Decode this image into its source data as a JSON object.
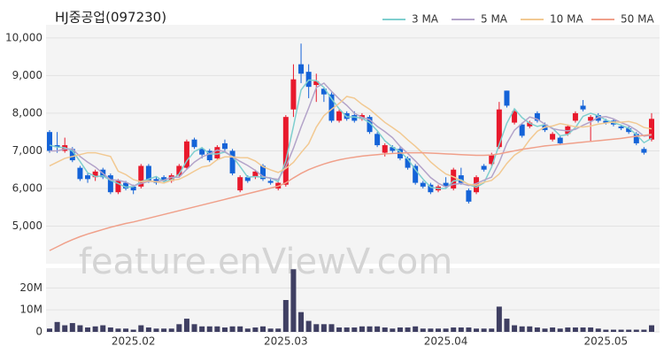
{
  "chart_data": {
    "type": "candlestick",
    "title": "HJ중공업(097230)",
    "watermark": "feature.enViewV.com",
    "categories": [
      null,
      null,
      null,
      null,
      null,
      null,
      null,
      null,
      null,
      null,
      null,
      "2025.02",
      null,
      null,
      null,
      null,
      null,
      null,
      null,
      null,
      null,
      null,
      null,
      null,
      null,
      null,
      null,
      null,
      null,
      null,
      null,
      "2025.03",
      null,
      null,
      null,
      null,
      null,
      null,
      null,
      null,
      null,
      null,
      null,
      null,
      null,
      null,
      null,
      null,
      null,
      null,
      null,
      null,
      "2025.04",
      null,
      null,
      null,
      null,
      null,
      null,
      null,
      null,
      null,
      null,
      null,
      null,
      null,
      null,
      null,
      null,
      null,
      null,
      null,
      null,
      "2025.05",
      null,
      null,
      null,
      null,
      null,
      null
    ],
    "open": [
      7500,
      7150,
      7000,
      7050,
      6550,
      6350,
      6300,
      6500,
      6350,
      5900,
      6150,
      6050,
      6050,
      6600,
      6250,
      6300,
      6200,
      6350,
      6550,
      7300,
      7050,
      7000,
      6800,
      7200,
      7000,
      5950,
      6300,
      6300,
      6600,
      6200,
      6000,
      6100,
      8100,
      9300,
      9100,
      8750,
      8650,
      8500,
      7800,
      8000,
      7950,
      7850,
      7900,
      7450,
      6950,
      7100,
      7050,
      6800,
      6600,
      6150,
      6100,
      5950,
      6150,
      6000,
      6350,
      5950,
      5900,
      6600,
      6650,
      7100,
      8600,
      7750,
      7700,
      7650,
      8000,
      7700,
      7300,
      7350,
      7450,
      7800,
      8200,
      7800,
      7950,
      7800,
      7800,
      7650,
      7600,
      7450,
      7050,
      7300
    ],
    "high": [
      7550,
      7500,
      7350,
      7100,
      6600,
      6400,
      6500,
      6550,
      6400,
      6250,
      6200,
      6100,
      6650,
      6650,
      6300,
      6350,
      6400,
      6650,
      7300,
      7350,
      7100,
      7050,
      7150,
      7300,
      7050,
      6350,
      6350,
      6500,
      6650,
      6250,
      6200,
      7950,
      9300,
      9850,
      9300,
      9050,
      8700,
      8550,
      8100,
      8050,
      8050,
      8000,
      7950,
      7500,
      7200,
      7150,
      7100,
      6850,
      6650,
      6200,
      6150,
      6100,
      6300,
      6550,
      6550,
      6000,
      6350,
      6650,
      6950,
      8300,
      8600,
      8100,
      7750,
      7800,
      8050,
      7750,
      7500,
      7400,
      7700,
      8050,
      8350,
      7950,
      8000,
      7850,
      7850,
      7700,
      7650,
      7500,
      7100,
      8000
    ],
    "low": [
      6950,
      6950,
      6950,
      6700,
      6200,
      6150,
      6200,
      6250,
      5850,
      5850,
      5950,
      5850,
      6000,
      6150,
      6100,
      6150,
      6150,
      6300,
      6500,
      7050,
      6800,
      6700,
      6750,
      7000,
      6350,
      5900,
      6150,
      6250,
      6200,
      6100,
      5950,
      6050,
      7900,
      8800,
      8400,
      8300,
      8300,
      7750,
      7750,
      7800,
      7750,
      7800,
      7450,
      7100,
      6850,
      6950,
      6750,
      6500,
      6100,
      6000,
      5850,
      5900,
      6000,
      5950,
      6100,
      5600,
      5850,
      6450,
      6600,
      7050,
      8150,
      7700,
      7350,
      7600,
      7750,
      7500,
      7250,
      7150,
      7400,
      7750,
      8050,
      7250,
      7750,
      7700,
      7650,
      7550,
      7450,
      7150,
      6900,
      7250
    ],
    "close": [
      7000,
      7100,
      7150,
      6750,
      6250,
      6250,
      6450,
      6300,
      5900,
      6200,
      6000,
      5950,
      6600,
      6200,
      6150,
      6200,
      6350,
      6600,
      7250,
      7100,
      6900,
      6750,
      7100,
      7050,
      6400,
      6300,
      6200,
      6450,
      6250,
      6150,
      6150,
      7900,
      8900,
      9050,
      8700,
      8850,
      8500,
      7800,
      8050,
      7850,
      7800,
      7950,
      7500,
      7150,
      7150,
      7000,
      6800,
      6550,
      6150,
      6050,
      5900,
      6050,
      6050,
      6500,
      6150,
      5650,
      6300,
      6500,
      6900,
      8100,
      8200,
      8050,
      7400,
      7750,
      7800,
      7550,
      7450,
      7200,
      7650,
      8000,
      8100,
      7900,
      7800,
      7750,
      7700,
      7600,
      7500,
      7200,
      6950,
      7850
    ],
    "up_color": "#e8192c",
    "down_color": "#1463d8",
    "ylim": [
      4000,
      10350
    ],
    "yticks": [
      {
        "value": 5000,
        "label": "5,000"
      },
      {
        "value": 6000,
        "label": "6,000"
      },
      {
        "value": 7000,
        "label": "7,000"
      },
      {
        "value": 8000,
        "label": "8,000"
      },
      {
        "value": 9000,
        "label": "9,000"
      },
      {
        "value": 10000,
        "label": "10,000"
      }
    ],
    "grid": true,
    "legend": "top-right",
    "series": [
      {
        "name": "3 MA",
        "color": "#7fcfcf",
        "values": [
          7150,
          7100,
          7083,
          7000,
          6717,
          6417,
          6317,
          6333,
          6217,
          6133,
          6033,
          6050,
          6183,
          6250,
          6317,
          6183,
          6233,
          6383,
          6733,
          6983,
          7083,
          6917,
          6917,
          6967,
          6850,
          6583,
          6300,
          6317,
          6300,
          6283,
          6183,
          6733,
          7650,
          8617,
          8883,
          8867,
          8683,
          8383,
          8117,
          7900,
          7900,
          7867,
          7750,
          7533,
          7267,
          7100,
          6983,
          6783,
          6500,
          6250,
          6033,
          6000,
          6000,
          6200,
          6233,
          6100,
          6033,
          6150,
          6567,
          7167,
          7733,
          8117,
          7883,
          7733,
          7650,
          7700,
          7600,
          7400,
          7433,
          7617,
          7917,
          8000,
          7933,
          7817,
          7750,
          7683,
          7600,
          7433,
          7217,
          7333
        ]
      },
      {
        "name": "5 MA",
        "color": "#b3a3c9",
        "values": [
          7000,
          7000,
          7050,
          7050,
          6850,
          6700,
          6570,
          6400,
          6230,
          6220,
          6170,
          6070,
          6130,
          6190,
          6180,
          6220,
          6300,
          6300,
          6510,
          6700,
          6840,
          6920,
          7020,
          6980,
          6840,
          6720,
          6610,
          6480,
          6320,
          6270,
          6240,
          6580,
          7070,
          7630,
          8140,
          8680,
          8800,
          8580,
          8380,
          8210,
          8000,
          7890,
          7830,
          7650,
          7510,
          7350,
          7120,
          6930,
          6730,
          6510,
          6290,
          6140,
          6040,
          6110,
          6130,
          6080,
          6130,
          6220,
          6300,
          6690,
          7200,
          7550,
          7730,
          7900,
          7840,
          7710,
          7590,
          7550,
          7530,
          7570,
          7680,
          7770,
          7890,
          7910,
          7850,
          7750,
          7670,
          7550,
          7390,
          7420
        ]
      },
      {
        "name": "10 MA",
        "color": "#f2c992",
        "values": [
          6600,
          6700,
          6800,
          6850,
          6900,
          6950,
          6950,
          6900,
          6850,
          6460,
          6370,
          6235,
          6180,
          6205,
          6175,
          6145,
          6215,
          6245,
          6345,
          6460,
          6570,
          6610,
          6765,
          6840,
          6840,
          6820,
          6815,
          6730,
          6580,
          6495,
          6425,
          6530,
          6695,
          6950,
          7190,
          7630,
          7935,
          8105,
          8260,
          8445,
          8400,
          8235,
          8105,
          7930,
          7755,
          7620,
          7475,
          7290,
          7120,
          6930,
          6705,
          6535,
          6385,
          6310,
          6210,
          6110,
          6085,
          6165,
          6215,
          6385,
          6665,
          6885,
          7015,
          7295,
          7520,
          7630,
          7660,
          7725,
          7685,
          7640,
          7635,
          7660,
          7710,
          7740,
          7765,
          7760,
          7780,
          7730,
          7620,
          7585
        ]
      },
      {
        "name": "50 MA",
        "color": "#f0a08a",
        "values": [
          4350,
          4450,
          4550,
          4640,
          4720,
          4790,
          4850,
          4910,
          4970,
          5020,
          5070,
          5110,
          5160,
          5210,
          5260,
          5310,
          5360,
          5410,
          5460,
          5510,
          5560,
          5610,
          5660,
          5710,
          5760,
          5810,
          5860,
          5910,
          5960,
          6010,
          6060,
          6150,
          6280,
          6400,
          6500,
          6580,
          6650,
          6710,
          6760,
          6800,
          6830,
          6860,
          6880,
          6900,
          6920,
          6930,
          6940,
          6950,
          6950,
          6950,
          6940,
          6930,
          6920,
          6910,
          6900,
          6890,
          6880,
          6880,
          6890,
          6920,
          6960,
          7000,
          7040,
          7070,
          7100,
          7130,
          7150,
          7170,
          7190,
          7210,
          7230,
          7250,
          7270,
          7290,
          7310,
          7330,
          7360,
          7390,
          7410,
          7440
        ]
      }
    ],
    "volume": {
      "color": "#3f3f62",
      "ylim": [
        0,
        29000000
      ],
      "yticks": [
        {
          "value": 0,
          "label": "0"
        },
        {
          "value": 10000000,
          "label": "10M"
        },
        {
          "value": 20000000,
          "label": "20M"
        }
      ],
      "values": [
        1500000,
        4500000,
        3000000,
        4000000,
        3000000,
        2000000,
        2500000,
        3000000,
        2000000,
        1500000,
        1500000,
        1000000,
        3000000,
        2000000,
        1500000,
        1500000,
        1500000,
        3500000,
        6000000,
        3500000,
        2500000,
        2500000,
        2500000,
        2000000,
        2500000,
        2500000,
        1500000,
        2000000,
        2500000,
        1500000,
        1500000,
        14500000,
        28500000,
        9000000,
        5000000,
        3500000,
        3500000,
        3500000,
        2000000,
        2000000,
        2000000,
        2500000,
        2500000,
        2500000,
        2000000,
        1500000,
        2000000,
        2000000,
        2500000,
        1500000,
        1500000,
        1500000,
        1500000,
        2000000,
        2000000,
        2000000,
        1500000,
        1500000,
        1500000,
        11500000,
        6000000,
        3000000,
        2500000,
        2500000,
        2000000,
        1500000,
        2000000,
        1500000,
        2000000,
        2000000,
        2000000,
        2000000,
        1500000,
        1000000,
        1000000,
        1000000,
        1000000,
        1000000,
        1000000,
        3000000
      ]
    }
  }
}
